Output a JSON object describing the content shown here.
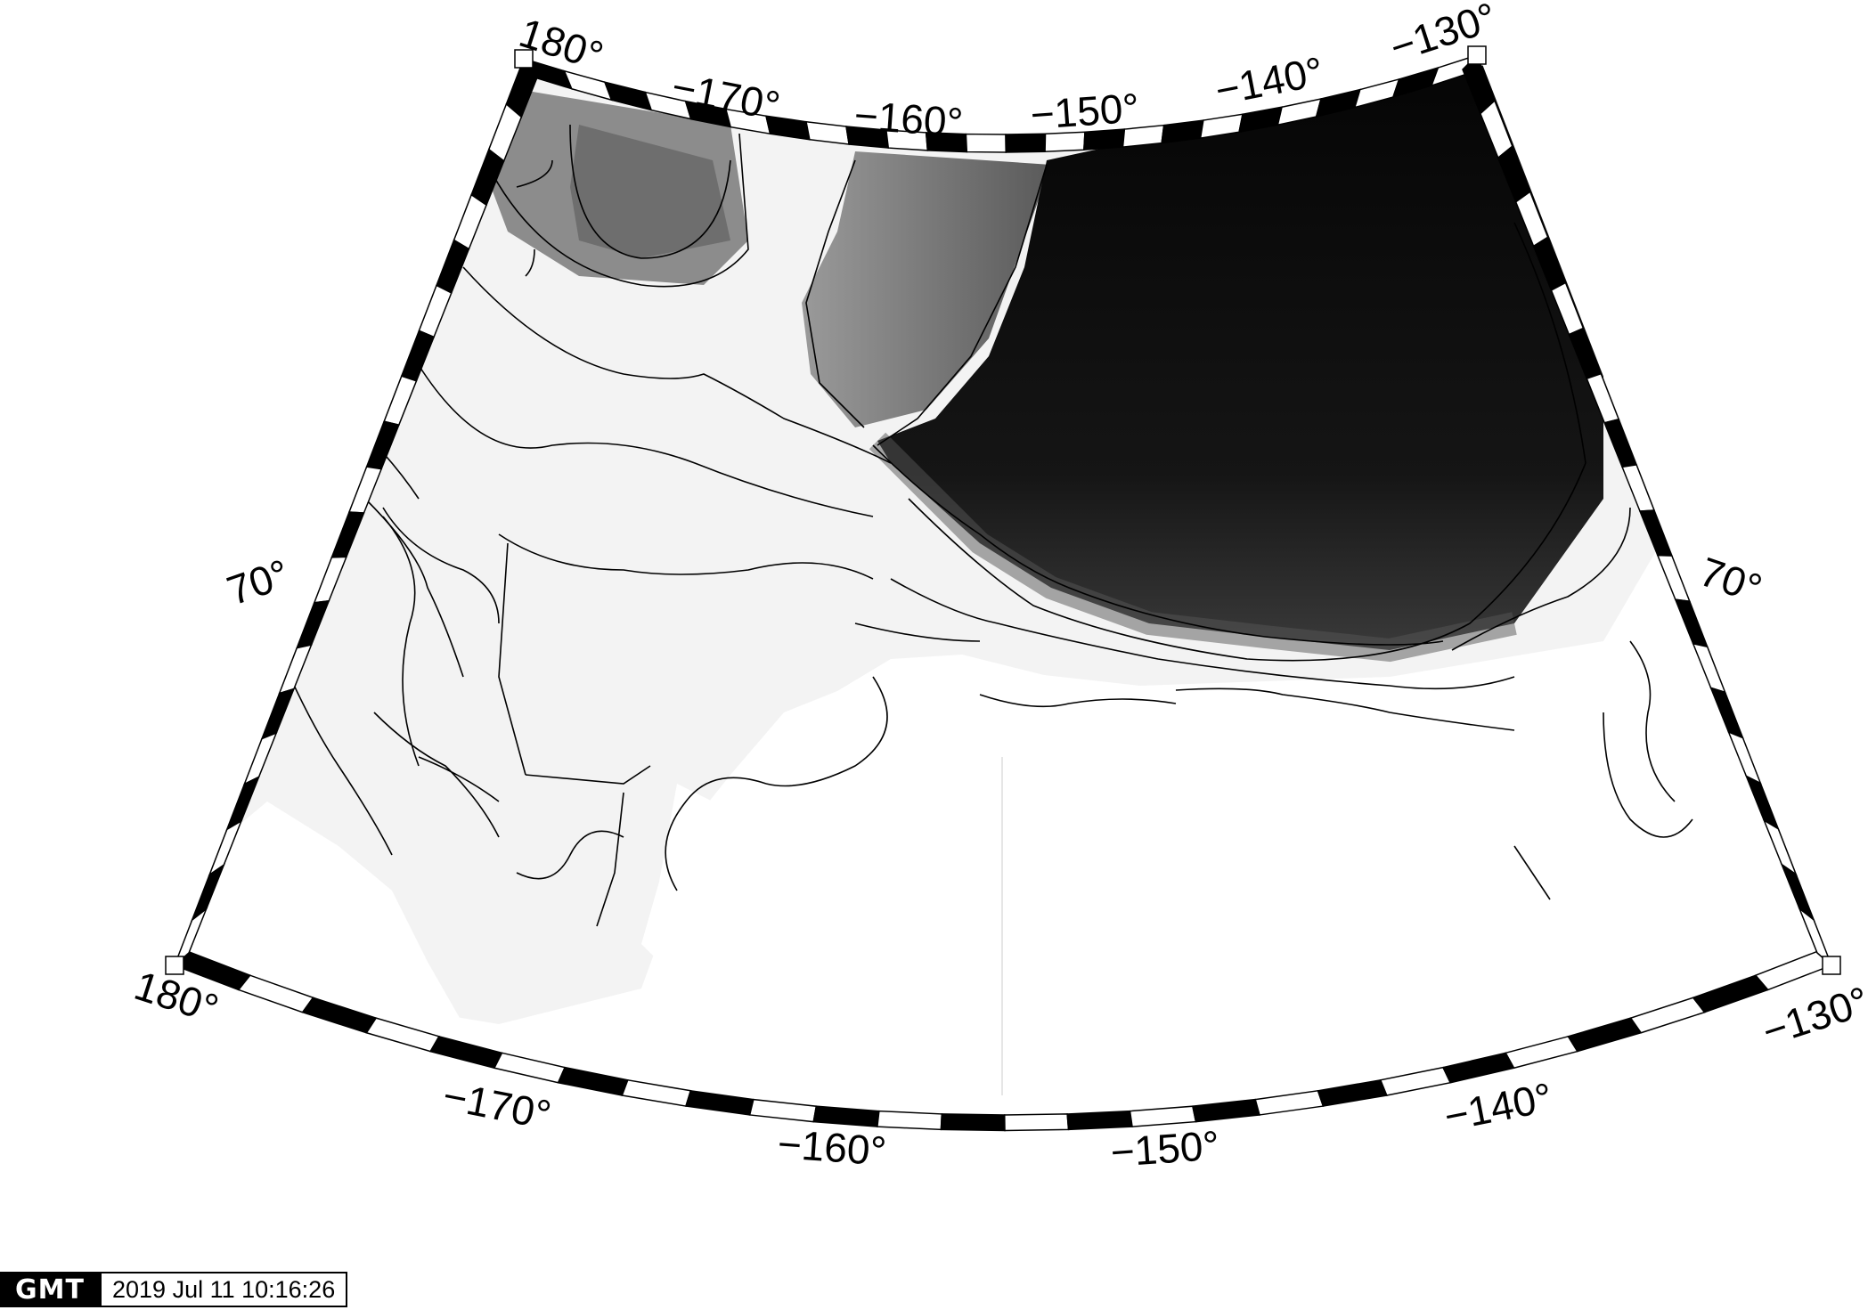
{
  "map": {
    "projection": "conic",
    "shading": "grayscale bathymetry/topography with contour lines",
    "colors": {
      "deep_water": "#0a0a0a",
      "shallow_water": "#f2f2f2",
      "land": "#ffffff",
      "contour": "#000000"
    },
    "top_lon_labels": [
      "180°",
      "−170°",
      "−160°",
      "−150°",
      "−140°",
      "−130°"
    ],
    "bottom_lon_labels": [
      "180°",
      "−170°",
      "−160°",
      "−150°",
      "−140°",
      "−130°"
    ],
    "lat_labels_left": [
      "70°"
    ],
    "lat_labels_right": [
      "70°"
    ]
  },
  "timestamp": {
    "logo_text": "GMT",
    "text": "2019 Jul 11 10:16:26"
  }
}
